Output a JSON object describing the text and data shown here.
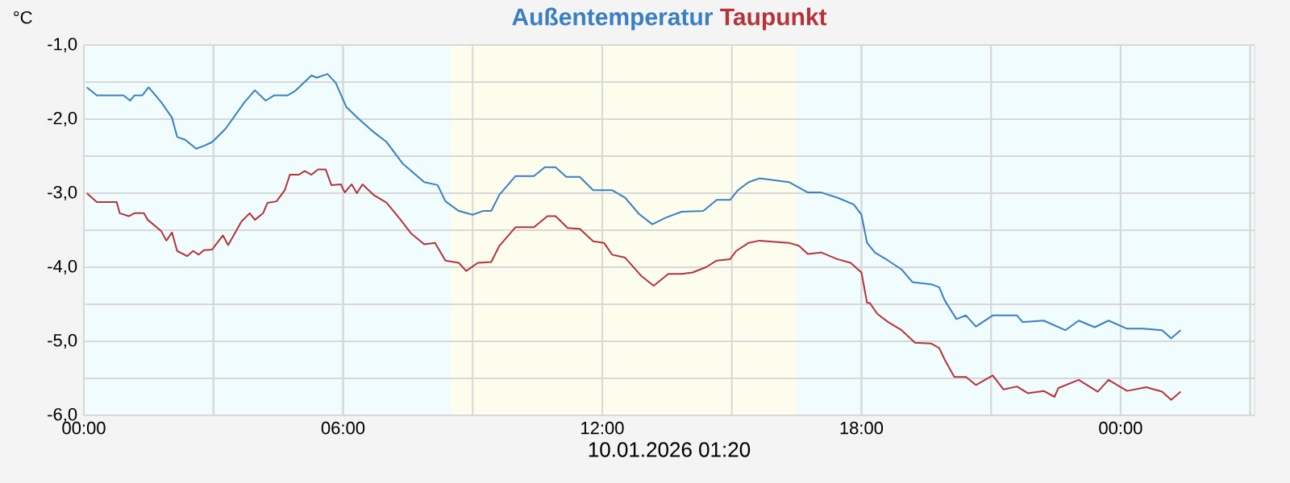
{
  "chart_data": {
    "type": "line",
    "xlabel": "10.01.2026 01:20",
    "ylabel": "°C",
    "xlim": [
      0,
      27.1
    ],
    "ylim": [
      -6,
      -1
    ],
    "xticks": [
      {
        "value": 0,
        "label": "00:00"
      },
      {
        "value": 3,
        "label": null
      },
      {
        "value": 6,
        "label": "06:00"
      },
      {
        "value": 9,
        "label": null
      },
      {
        "value": 12,
        "label": "12:00"
      },
      {
        "value": 15,
        "label": null
      },
      {
        "value": 18,
        "label": "18:00"
      },
      {
        "value": 21,
        "label": null
      },
      {
        "value": 24,
        "label": "00:00"
      },
      {
        "value": 27,
        "label": null
      }
    ],
    "yticks": [
      {
        "value": -6,
        "label": "-6,0"
      },
      {
        "value": -5.5,
        "label": null
      },
      {
        "value": -5,
        "label": "-5,0"
      },
      {
        "value": -4.5,
        "label": null
      },
      {
        "value": -4,
        "label": "-4,0"
      },
      {
        "value": -3.5,
        "label": null
      },
      {
        "value": -3,
        "label": "-3,0"
      },
      {
        "value": -2.5,
        "label": null
      },
      {
        "value": -2,
        "label": "-2,0"
      },
      {
        "value": -1.5,
        "label": null
      },
      {
        "value": -1,
        "label": "-1,0"
      }
    ],
    "grid": true,
    "legend": "top",
    "marker": "none",
    "line_style": "solid",
    "bands": [
      {
        "axis": "x",
        "from": 8.5,
        "to": 16.5,
        "color": "#fdfdee"
      }
    ],
    "series": [
      {
        "name": "Außentemperatur",
        "color": "#3a7fc0",
        "x": [
          0.07,
          0.3,
          0.92,
          1.07,
          1.17,
          1.35,
          1.5,
          1.79,
          2.04,
          2.16,
          2.35,
          2.6,
          2.78,
          2.97,
          3.28,
          3.72,
          3.96,
          4.21,
          4.4,
          4.71,
          4.89,
          5.27,
          5.39,
          5.64,
          5.83,
          6.08,
          6.39,
          6.7,
          7.01,
          7.38,
          7.88,
          8.19,
          8.37,
          8.68,
          9.0,
          9.24,
          9.43,
          9.62,
          9.99,
          10.42,
          10.67,
          10.92,
          11.17,
          11.48,
          11.79,
          12.23,
          12.53,
          12.85,
          13.16,
          13.47,
          13.84,
          14.34,
          14.65,
          14.96,
          15.14,
          15.39,
          15.64,
          16.32,
          16.76,
          17.07,
          17.44,
          17.82,
          18.0,
          18.13,
          18.31,
          18.62,
          18.93,
          19.18,
          19.62,
          19.8,
          19.93,
          20.2,
          20.42,
          20.65,
          21.04,
          21.6,
          21.73,
          22.22,
          22.72,
          23.03,
          23.4,
          23.72,
          24.15,
          24.52,
          24.96,
          25.17,
          25.39
        ],
        "values": [
          -1.57,
          -1.68,
          -1.68,
          -1.75,
          -1.68,
          -1.68,
          -1.57,
          -1.77,
          -1.98,
          -2.24,
          -2.28,
          -2.4,
          -2.36,
          -2.31,
          -2.13,
          -1.77,
          -1.61,
          -1.75,
          -1.68,
          -1.68,
          -1.62,
          -1.41,
          -1.44,
          -1.39,
          -1.51,
          -1.84,
          -2.01,
          -2.17,
          -2.31,
          -2.6,
          -2.85,
          -2.89,
          -3.11,
          -3.24,
          -3.29,
          -3.24,
          -3.24,
          -3.02,
          -2.77,
          -2.77,
          -2.65,
          -2.65,
          -2.78,
          -2.78,
          -2.96,
          -2.96,
          -3.06,
          -3.28,
          -3.42,
          -3.33,
          -3.25,
          -3.24,
          -3.09,
          -3.09,
          -2.96,
          -2.85,
          -2.8,
          -2.85,
          -2.99,
          -2.99,
          -3.06,
          -3.15,
          -3.29,
          -3.67,
          -3.8,
          -3.91,
          -4.03,
          -4.2,
          -4.23,
          -4.27,
          -4.45,
          -4.7,
          -4.65,
          -4.8,
          -4.65,
          -4.65,
          -4.74,
          -4.72,
          -4.85,
          -4.72,
          -4.81,
          -4.72,
          -4.83,
          -4.83,
          -4.85,
          -4.96,
          -4.85
        ]
      },
      {
        "name": "Taupunkt",
        "color": "#b5333b",
        "x": [
          0.07,
          0.3,
          0.76,
          0.83,
          1.04,
          1.17,
          1.39,
          1.48,
          1.79,
          1.91,
          2.04,
          2.16,
          2.39,
          2.53,
          2.66,
          2.78,
          2.97,
          3.22,
          3.34,
          3.65,
          3.84,
          3.96,
          4.15,
          4.25,
          4.46,
          4.65,
          4.77,
          4.98,
          5.11,
          5.27,
          5.42,
          5.6,
          5.73,
          5.95,
          6.04,
          6.2,
          6.32,
          6.45,
          6.7,
          7.01,
          7.32,
          7.57,
          7.88,
          8.13,
          8.37,
          8.68,
          8.85,
          9.12,
          9.43,
          9.62,
          9.99,
          10.42,
          10.73,
          10.92,
          11.2,
          11.48,
          11.79,
          12.04,
          12.23,
          12.53,
          12.91,
          13.19,
          13.53,
          13.84,
          14.09,
          14.4,
          14.65,
          14.96,
          15.1,
          15.39,
          15.64,
          16.32,
          16.55,
          16.76,
          17.07,
          17.44,
          17.75,
          18.0,
          18.13,
          18.19,
          18.37,
          18.62,
          18.93,
          19.24,
          19.62,
          19.8,
          19.93,
          20.15,
          20.42,
          20.65,
          21.04,
          21.29,
          21.6,
          21.85,
          22.22,
          22.47,
          22.56,
          23.03,
          23.47,
          23.72,
          24.15,
          24.59,
          24.96,
          25.17,
          25.39
        ],
        "values": [
          -3.0,
          -3.12,
          -3.12,
          -3.27,
          -3.31,
          -3.27,
          -3.27,
          -3.36,
          -3.51,
          -3.64,
          -3.53,
          -3.78,
          -3.85,
          -3.78,
          -3.83,
          -3.77,
          -3.76,
          -3.57,
          -3.7,
          -3.38,
          -3.27,
          -3.36,
          -3.27,
          -3.13,
          -3.11,
          -2.96,
          -2.75,
          -2.75,
          -2.7,
          -2.75,
          -2.68,
          -2.68,
          -2.89,
          -2.88,
          -2.99,
          -2.88,
          -3.0,
          -2.88,
          -3.02,
          -3.13,
          -3.35,
          -3.54,
          -3.69,
          -3.67,
          -3.91,
          -3.94,
          -4.05,
          -3.94,
          -3.93,
          -3.71,
          -3.46,
          -3.46,
          -3.31,
          -3.31,
          -3.47,
          -3.48,
          -3.65,
          -3.67,
          -3.83,
          -3.87,
          -4.12,
          -4.25,
          -4.09,
          -4.09,
          -4.07,
          -4.0,
          -3.91,
          -3.89,
          -3.78,
          -3.67,
          -3.64,
          -3.67,
          -3.71,
          -3.82,
          -3.8,
          -3.89,
          -3.94,
          -4.07,
          -4.48,
          -4.48,
          -4.63,
          -4.74,
          -4.85,
          -5.02,
          -5.03,
          -5.09,
          -5.25,
          -5.48,
          -5.48,
          -5.59,
          -5.46,
          -5.65,
          -5.61,
          -5.7,
          -5.67,
          -5.75,
          -5.63,
          -5.52,
          -5.68,
          -5.52,
          -5.67,
          -5.62,
          -5.68,
          -5.79,
          -5.68
        ]
      }
    ]
  }
}
